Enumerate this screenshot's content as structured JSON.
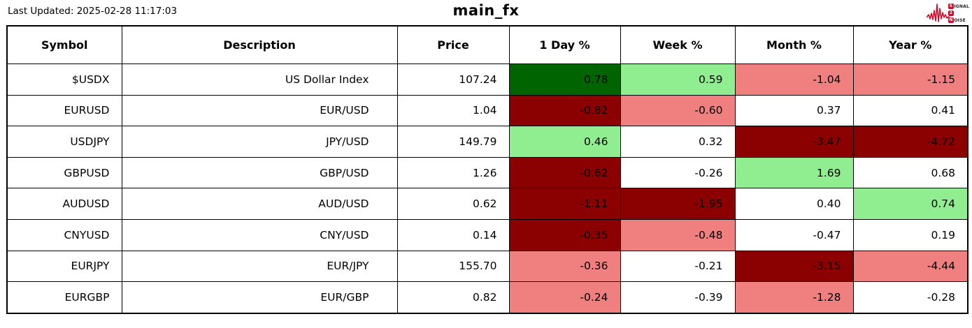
{
  "page": {
    "last_updated": "Last Updated: 2025-02-28 11:17:03",
    "title": "main_fx"
  },
  "logo": {
    "word1_initial": "S",
    "word1_rest": "IGNAL",
    "word2": "2",
    "word3_initial": "N",
    "word3_rest": "OISE",
    "color": "#c8102e"
  },
  "colors": {
    "strong_gain": "#006400",
    "gain": "#90EE90",
    "loss": "#F08080",
    "strong_loss": "#8B0000",
    "neutral": "#FFFFFF",
    "border": "#000000"
  },
  "table": {
    "columns": [
      "Symbol",
      "Description",
      "Price",
      "1 Day %",
      "Week %",
      "Month %",
      "Year %"
    ],
    "rows": [
      {
        "symbol": "$USDX",
        "description": "US Dollar Index",
        "price": "107.24",
        "day": "0.78",
        "week": "0.59",
        "month": "-1.04",
        "year": "-1.15",
        "day_color": "strong_gain",
        "week_color": "gain",
        "month_color": "loss",
        "year_color": "loss"
      },
      {
        "symbol": "EURUSD",
        "description": "EUR/USD",
        "price": "1.04",
        "day": "-0.82",
        "week": "-0.60",
        "month": "0.37",
        "year": "0.41",
        "day_color": "strong_loss",
        "week_color": "loss",
        "month_color": "neutral",
        "year_color": "neutral"
      },
      {
        "symbol": "USDJPY",
        "description": "JPY/USD",
        "price": "149.79",
        "day": "0.46",
        "week": "0.32",
        "month": "-3.47",
        "year": "-4.72",
        "day_color": "gain",
        "week_color": "neutral",
        "month_color": "strong_loss",
        "year_color": "strong_loss"
      },
      {
        "symbol": "GBPUSD",
        "description": "GBP/USD",
        "price": "1.26",
        "day": "-0.62",
        "week": "-0.26",
        "month": "1.69",
        "year": "0.68",
        "day_color": "strong_loss",
        "week_color": "neutral",
        "month_color": "gain",
        "year_color": "neutral"
      },
      {
        "symbol": "AUDUSD",
        "description": "AUD/USD",
        "price": "0.62",
        "day": "-1.11",
        "week": "-1.95",
        "month": "0.40",
        "year": "0.74",
        "day_color": "strong_loss",
        "week_color": "strong_loss",
        "month_color": "neutral",
        "year_color": "gain"
      },
      {
        "symbol": "CNYUSD",
        "description": "CNY/USD",
        "price": "0.14",
        "day": "-0.35",
        "week": "-0.48",
        "month": "-0.47",
        "year": "0.19",
        "day_color": "strong_loss",
        "week_color": "loss",
        "month_color": "neutral",
        "year_color": "neutral"
      },
      {
        "symbol": "EURJPY",
        "description": "EUR/JPY",
        "price": "155.70",
        "day": "-0.36",
        "week": "-0.21",
        "month": "-3.15",
        "year": "-4.44",
        "day_color": "loss",
        "week_color": "neutral",
        "month_color": "strong_loss",
        "year_color": "loss"
      },
      {
        "symbol": "EURGBP",
        "description": "EUR/GBP",
        "price": "0.82",
        "day": "-0.24",
        "week": "-0.39",
        "month": "-1.28",
        "year": "-0.28",
        "day_color": "loss",
        "week_color": "neutral",
        "month_color": "loss",
        "year_color": "neutral"
      }
    ]
  },
  "chart_data": {
    "type": "table",
    "title": "main_fx",
    "subtitle": "Last Updated: 2025-02-28 11:17:03",
    "columns": [
      "Symbol",
      "Description",
      "Price",
      "1 Day %",
      "Week %",
      "Month %",
      "Year %"
    ],
    "rows": [
      [
        "$USDX",
        "US Dollar Index",
        107.24,
        0.78,
        0.59,
        -1.04,
        -1.15
      ],
      [
        "EURUSD",
        "EUR/USD",
        1.04,
        -0.82,
        -0.6,
        0.37,
        0.41
      ],
      [
        "USDJPY",
        "JPY/USD",
        149.79,
        0.46,
        0.32,
        -3.47,
        -4.72
      ],
      [
        "GBPUSD",
        "GBP/USD",
        1.26,
        -0.62,
        -0.26,
        1.69,
        0.68
      ],
      [
        "AUDUSD",
        "AUD/USD",
        0.62,
        -1.11,
        -1.95,
        0.4,
        0.74
      ],
      [
        "CNYUSD",
        "CNY/USD",
        0.14,
        -0.35,
        -0.48,
        -0.47,
        0.19
      ],
      [
        "EURJPY",
        "EUR/JPY",
        155.7,
        -0.36,
        -0.21,
        -3.15,
        -4.44
      ],
      [
        "EURGBP",
        "EUR/GBP",
        0.82,
        -0.24,
        -0.39,
        -1.28,
        -0.28
      ]
    ],
    "heatmap_legend": {
      "strong_gain": "#006400",
      "gain": "#90EE90",
      "neutral": "#FFFFFF",
      "loss": "#F08080",
      "strong_loss": "#8B0000"
    },
    "cell_color_categories": [
      {
        "day": "strong_gain",
        "week": "gain",
        "month": "loss",
        "year": "loss"
      },
      {
        "day": "strong_loss",
        "week": "loss",
        "month": "neutral",
        "year": "neutral"
      },
      {
        "day": "gain",
        "week": "neutral",
        "month": "strong_loss",
        "year": "strong_loss"
      },
      {
        "day": "strong_loss",
        "week": "neutral",
        "month": "gain",
        "year": "neutral"
      },
      {
        "day": "strong_loss",
        "week": "strong_loss",
        "month": "neutral",
        "year": "gain"
      },
      {
        "day": "strong_loss",
        "week": "loss",
        "month": "neutral",
        "year": "neutral"
      },
      {
        "day": "loss",
        "week": "neutral",
        "month": "strong_loss",
        "year": "loss"
      },
      {
        "day": "loss",
        "week": "neutral",
        "month": "loss",
        "year": "neutral"
      }
    ]
  }
}
